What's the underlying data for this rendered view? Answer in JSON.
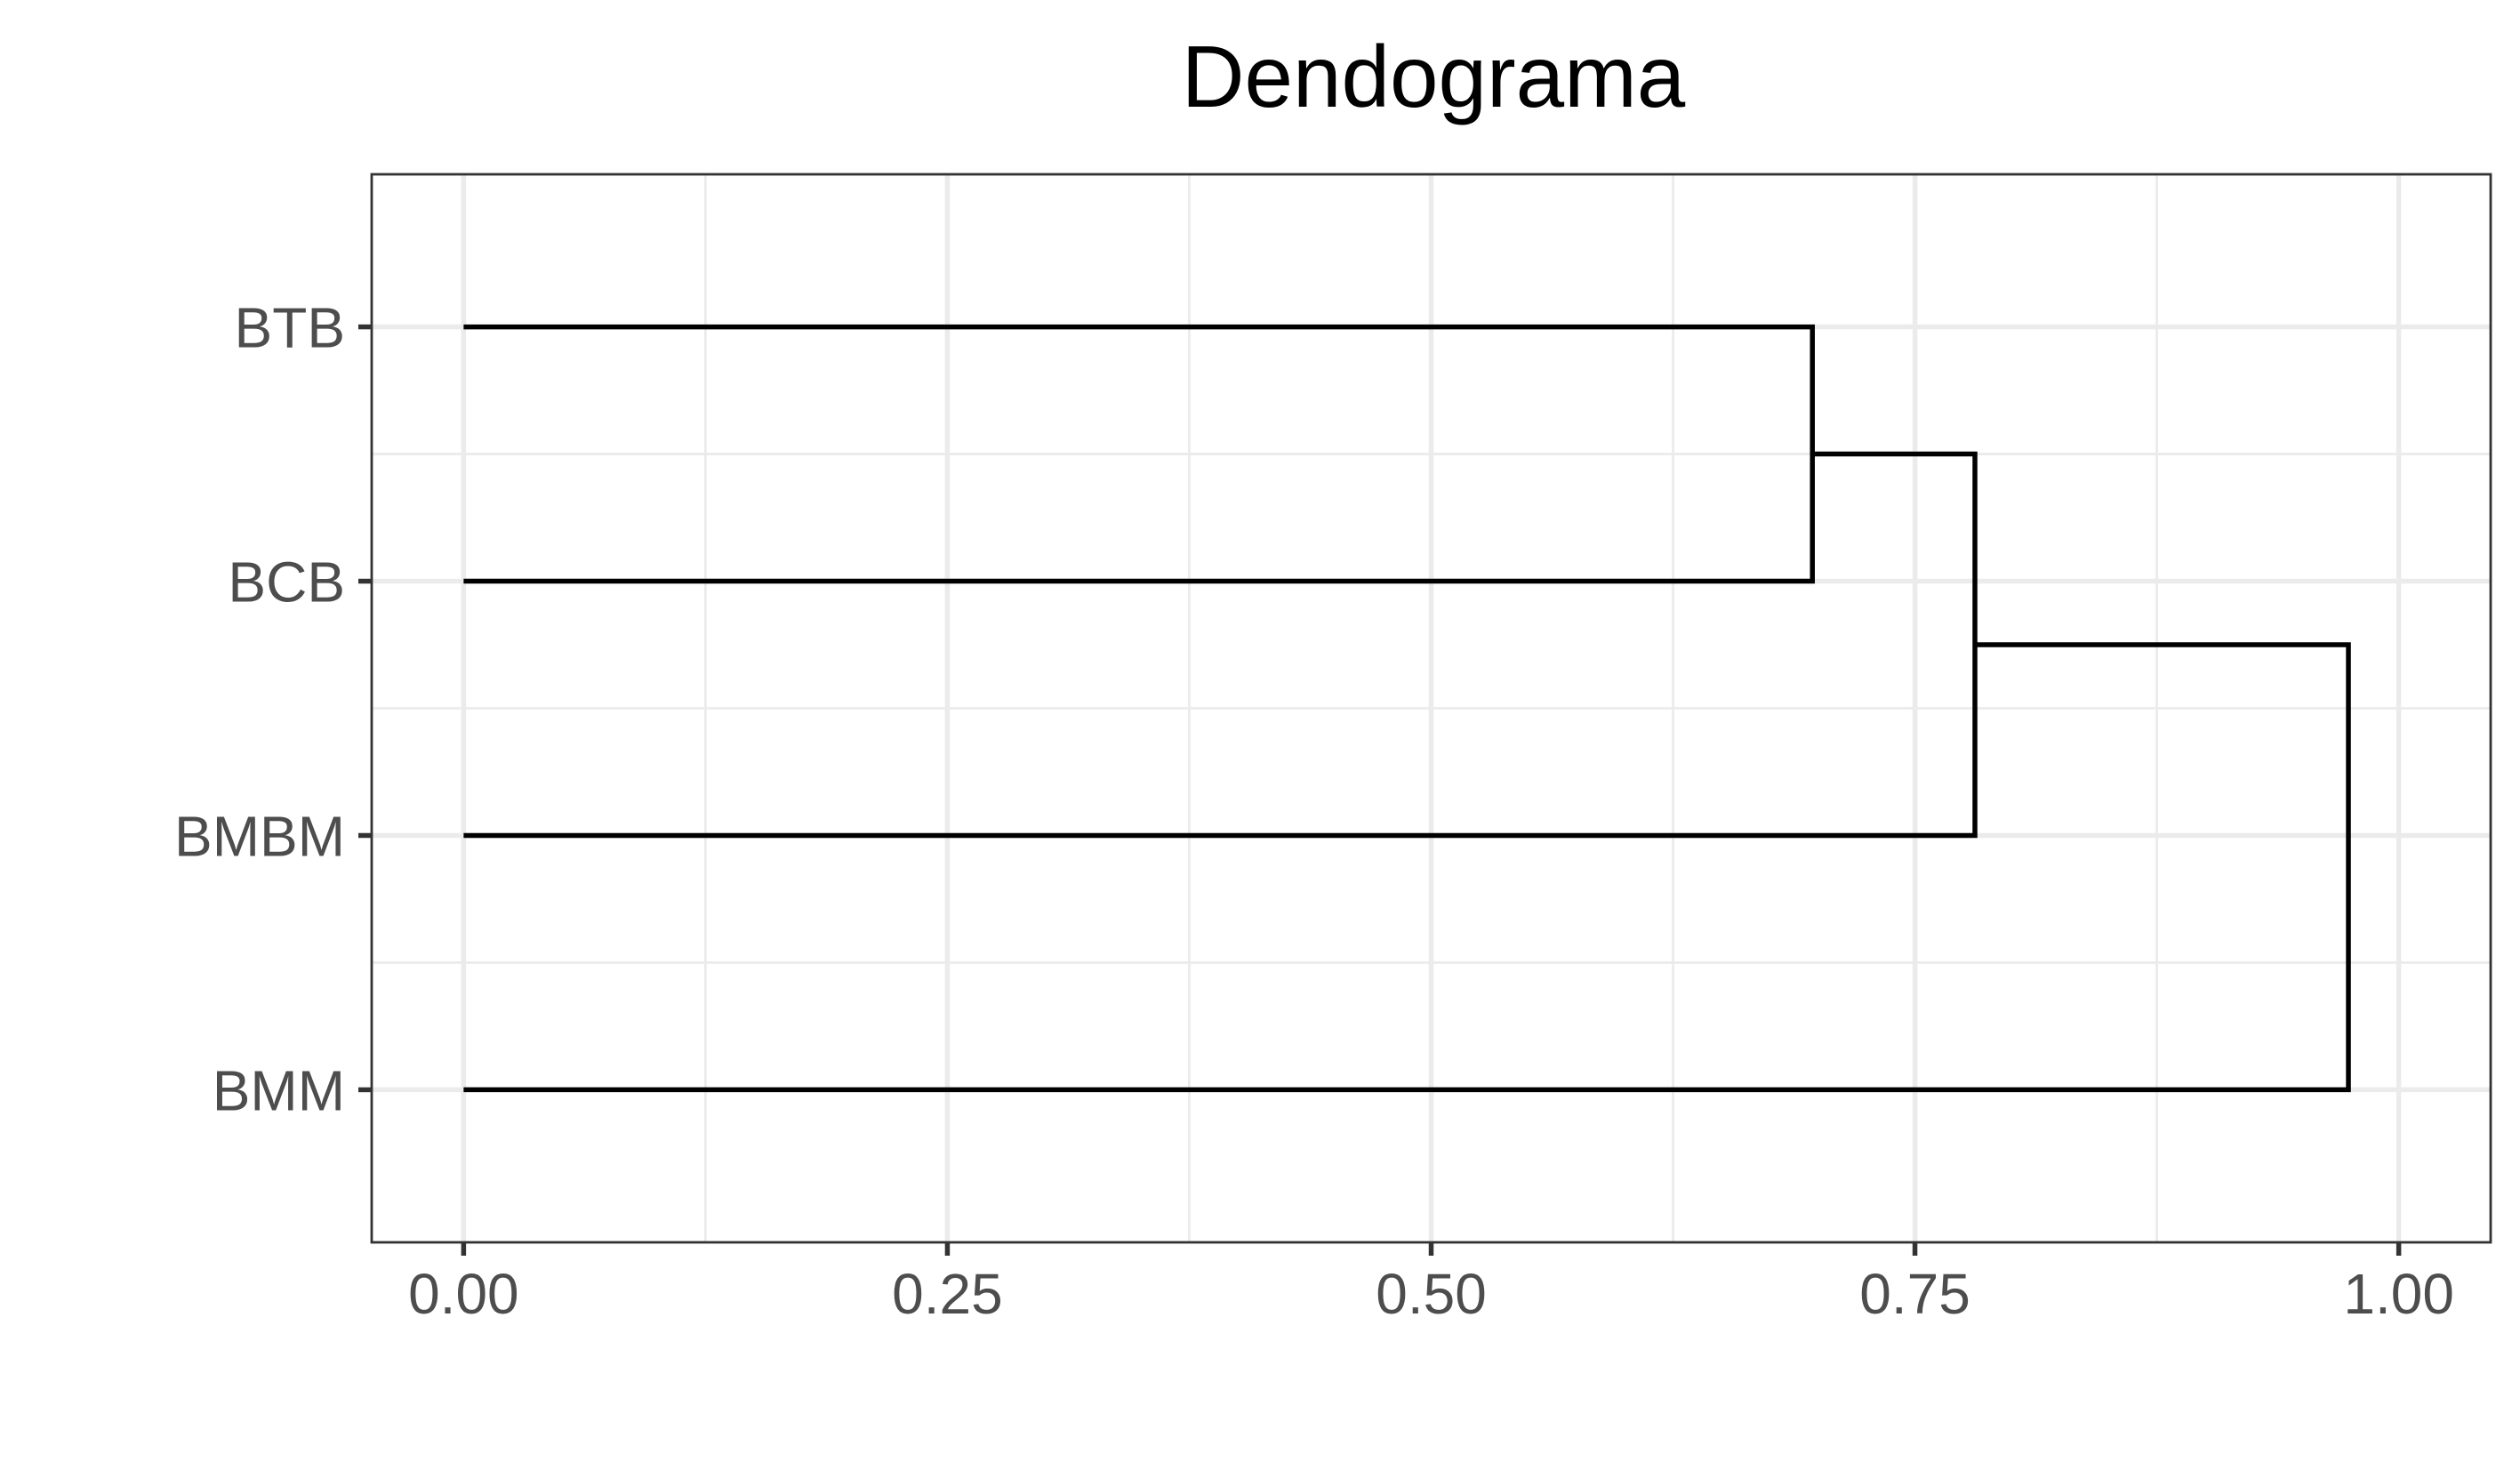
{
  "chart_data": {
    "type": "dendrogram",
    "title": "Dendograma",
    "xlabel": "",
    "ylabel": "",
    "orientation": "horizontal",
    "xlim": [
      -0.0475,
      1.0475
    ],
    "x_ticks": [
      {
        "value": 0.0,
        "label": "0.00"
      },
      {
        "value": 0.25,
        "label": "0.25"
      },
      {
        "value": 0.5,
        "label": "0.50"
      },
      {
        "value": 0.75,
        "label": "0.75"
      },
      {
        "value": 1.0,
        "label": "1.00"
      }
    ],
    "leaves": [
      "BTB",
      "BCB",
      "BMBM",
      "BMM"
    ],
    "merges": [
      {
        "left": "BTB",
        "right": "BCB",
        "height": 0.697
      },
      {
        "left": "BTB+BCB",
        "right": "BMBM",
        "height": 0.781
      },
      {
        "left": "BTB+BCB+BMBM",
        "right": "BMM",
        "height": 0.974
      }
    ],
    "grid": true,
    "legend": "none",
    "colors": {
      "branch": "#000000",
      "grid": "#ebebeb",
      "border": "#333333",
      "tick_text": "#4d4d4d"
    }
  }
}
